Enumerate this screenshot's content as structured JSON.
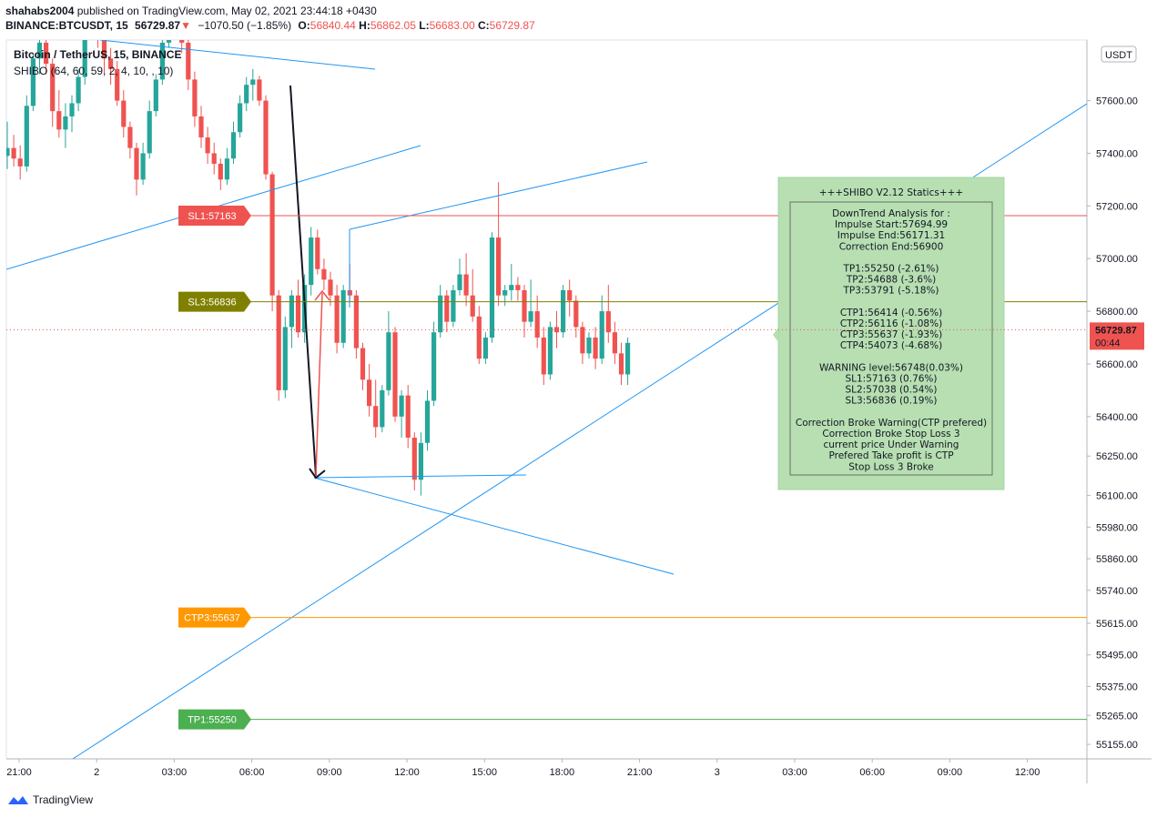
{
  "header": {
    "author": "shahabs2004",
    "published": "published on TradingView.com, May 02, 2021 23:44:18 +0430",
    "symbol": "BINANCE:BTCUSDT, 15",
    "last": "56729.87",
    "change": "−1070.50 (−1.85%)",
    "open": "56840.44",
    "high": "56862.05",
    "low": "56683.00",
    "close": "56729.87"
  },
  "legend": {
    "line1": "Bitcoin / TetherUS, 15, BINANCE",
    "line2": "SHIBO (64, 60, 59, 2, 4, 10, , 10)"
  },
  "footer": {
    "brand": "TradingView"
  },
  "colors": {
    "up": "#26a69a",
    "down": "#ef5350",
    "trend": "#2196f3"
  },
  "chart_data": {
    "type": "candlestick",
    "currency_badge": "USDT",
    "ylim": [
      55100,
      57830
    ],
    "y_ticks": [
      55155,
      55265,
      55375,
      55495,
      55615,
      55740,
      55860,
      55980,
      56100,
      56250,
      56400,
      56600,
      56800,
      57000,
      57200,
      57400,
      57600
    ],
    "x_ticks": [
      {
        "t": 0,
        "label": "21:00"
      },
      {
        "t": 12,
        "label": "2"
      },
      {
        "t": 24,
        "label": "03:00"
      },
      {
        "t": 36,
        "label": "06:00"
      },
      {
        "t": 48,
        "label": "09:00"
      },
      {
        "t": 60,
        "label": "12:00"
      },
      {
        "t": 72,
        "label": "15:00"
      },
      {
        "t": 84,
        "label": "18:00"
      },
      {
        "t": 96,
        "label": "21:00"
      },
      {
        "t": 108,
        "label": "3"
      },
      {
        "t": 120,
        "label": "03:00"
      },
      {
        "t": 132,
        "label": "06:00"
      },
      {
        "t": 144,
        "label": "09:00"
      },
      {
        "t": 156,
        "label": "12:00"
      }
    ],
    "current_price": {
      "value": 56729.87,
      "label": "56729.87",
      "countdown": "00:44"
    },
    "candles": [
      [
        57390,
        57520,
        57340,
        57420
      ],
      [
        57420,
        57470,
        57350,
        57380
      ],
      [
        57380,
        57430,
        57300,
        57350
      ],
      [
        57350,
        57620,
        57330,
        57580
      ],
      [
        57580,
        57780,
        57560,
        57760
      ],
      [
        57760,
        57850,
        57700,
        57820
      ],
      [
        57820,
        57900,
        57700,
        57740
      ],
      [
        57740,
        57760,
        57500,
        57560
      ],
      [
        57560,
        57640,
        57460,
        57490
      ],
      [
        57490,
        57590,
        57420,
        57540
      ],
      [
        57540,
        57620,
        57480,
        57590
      ],
      [
        57590,
        57720,
        57560,
        57690
      ],
      [
        57690,
        58050,
        57660,
        58000
      ],
      [
        58000,
        58100,
        57900,
        57950
      ],
      [
        57950,
        57990,
        57800,
        57850
      ],
      [
        57850,
        57900,
        57700,
        57760
      ],
      [
        57760,
        57800,
        57660,
        57720
      ],
      [
        57720,
        57750,
        57580,
        57600
      ],
      [
        57600,
        57640,
        57460,
        57500
      ],
      [
        57500,
        57520,
        57380,
        57420
      ],
      [
        57420,
        57440,
        57240,
        57300
      ],
      [
        57300,
        57440,
        57280,
        57400
      ],
      [
        57400,
        57600,
        57380,
        57560
      ],
      [
        57560,
        57700,
        57540,
        57680
      ],
      [
        57680,
        57860,
        57660,
        57820
      ],
      [
        57820,
        58000,
        57800,
        57960
      ],
      [
        57960,
        58050,
        57860,
        57900
      ],
      [
        57900,
        57960,
        57780,
        57820
      ],
      [
        57820,
        57860,
        57640,
        57680
      ],
      [
        57680,
        57710,
        57500,
        57540
      ],
      [
        57540,
        57580,
        57420,
        57460
      ],
      [
        57460,
        57500,
        57360,
        57400
      ],
      [
        57400,
        57440,
        57320,
        57360
      ],
      [
        57360,
        57380,
        57260,
        57300
      ],
      [
        57300,
        57420,
        57280,
        57380
      ],
      [
        57380,
        57520,
        57360,
        57480
      ],
      [
        57480,
        57620,
        57460,
        57590
      ],
      [
        57590,
        57690,
        57560,
        57660
      ],
      [
        57660,
        57720,
        57600,
        57680
      ],
      [
        57680,
        57694,
        57580,
        57600
      ],
      [
        57600,
        57620,
        57300,
        57320
      ],
      [
        57320,
        57330,
        56800,
        56860
      ],
      [
        56860,
        56880,
        56460,
        56500
      ],
      [
        56500,
        56780,
        56470,
        56740
      ],
      [
        56740,
        56880,
        56660,
        56860
      ],
      [
        56860,
        56920,
        56700,
        56720
      ],
      [
        56720,
        56940,
        56680,
        56900
      ],
      [
        56900,
        57120,
        56860,
        57080
      ],
      [
        57080,
        57110,
        56940,
        56960
      ],
      [
        56960,
        57000,
        56880,
        56920
      ],
      [
        56920,
        56950,
        56820,
        56860
      ],
      [
        56860,
        56900,
        56640,
        56680
      ],
      [
        56680,
        56900,
        56660,
        56880
      ],
      [
        56880,
        56980,
        56840,
        56860
      ],
      [
        56860,
        56880,
        56620,
        56660
      ],
      [
        56660,
        56680,
        56500,
        56540
      ],
      [
        56540,
        56600,
        56400,
        56440
      ],
      [
        56440,
        56540,
        56320,
        56360
      ],
      [
        56360,
        56520,
        56340,
        56500
      ],
      [
        56500,
        56800,
        56480,
        56720
      ],
      [
        56720,
        56740,
        56380,
        56400
      ],
      [
        56400,
        56500,
        56320,
        56480
      ],
      [
        56480,
        56520,
        56280,
        56320
      ],
      [
        56320,
        56340,
        56120,
        56160
      ],
      [
        56160,
        56340,
        56100,
        56300
      ],
      [
        56300,
        56500,
        56270,
        56460
      ],
      [
        56460,
        56760,
        56440,
        56720
      ],
      [
        56720,
        56900,
        56700,
        56860
      ],
      [
        56860,
        56880,
        56720,
        56760
      ],
      [
        56760,
        56900,
        56740,
        56880
      ],
      [
        56880,
        57000,
        56860,
        56940
      ],
      [
        56940,
        57020,
        56820,
        56860
      ],
      [
        56860,
        56960,
        56760,
        56780
      ],
      [
        56780,
        56820,
        56600,
        56620
      ],
      [
        56620,
        56720,
        56600,
        56700
      ],
      [
        56700,
        57100,
        56680,
        57080
      ],
      [
        57080,
        57290,
        56820,
        56860
      ],
      [
        56860,
        56900,
        56820,
        56880
      ],
      [
        56880,
        56980,
        56840,
        56900
      ],
      [
        56900,
        56930,
        56840,
        56880
      ],
      [
        56880,
        56900,
        56700,
        56760
      ],
      [
        56760,
        56920,
        56740,
        56800
      ],
      [
        56800,
        56860,
        56660,
        56700
      ],
      [
        56700,
        56740,
        56520,
        56560
      ],
      [
        56560,
        56760,
        56540,
        56740
      ],
      [
        56740,
        56800,
        56660,
        56720
      ],
      [
        56720,
        56900,
        56700,
        56880
      ],
      [
        56880,
        56920,
        56780,
        56840
      ],
      [
        56840,
        56860,
        56700,
        56740
      ],
      [
        56740,
        56760,
        56600,
        56640
      ],
      [
        56640,
        56720,
        56620,
        56700
      ],
      [
        56700,
        56740,
        56580,
        56620
      ],
      [
        56620,
        56860,
        56600,
        56800
      ],
      [
        56800,
        56900,
        56680,
        56720
      ],
      [
        56720,
        56760,
        56600,
        56640
      ],
      [
        56640,
        56680,
        56520,
        56560
      ],
      [
        56560,
        56700,
        56520,
        56680
      ]
    ],
    "levels": [
      {
        "name": "SL1",
        "label": "SL1:57163",
        "value": 57163,
        "color": "#ef5350",
        "text": "#ffffff"
      },
      {
        "name": "SL3",
        "label": "SL3:56836",
        "value": 56836,
        "color": "#808000",
        "text": "#ffffff"
      },
      {
        "name": "CTP3",
        "label": "CTP3:55637",
        "value": 55637,
        "color": "#ff9800",
        "text": "#ffffff"
      },
      {
        "name": "TP1",
        "label": "TP1:55250",
        "value": 55250,
        "color": "#4caf50",
        "text": "#ffffff"
      }
    ],
    "stats_panel": {
      "title": "+++SHIBO V2.12 Statics+++",
      "lines": [
        "DownTrend Analysis for :",
        "Impulse Start:57694.99",
        "Impulse End:56171.31",
        "Correction End:56900",
        "",
        "TP1:55250 (-2.61%)",
        "TP2:54688 (-3.6%)",
        "TP3:53791 (-5.18%)",
        "",
        "CTP1:56414 (-0.56%)",
        "CTP2:56116 (-1.08%)",
        "CTP3:55637 (-1.93%)",
        "CTP4:54073 (-4.68%)",
        "",
        "WARNING level:56748(0.03%)",
        "SL1:57163 (0.76%)",
        "SL2:57038 (0.54%)",
        "SL3:56836 (0.19%)",
        "",
        "Correction Broke Warning(CTP prefered)",
        "Correction Broke Stop Loss 3",
        "current price Under Warning",
        "Prefered Take profit is CTP",
        "Stop Loss 3 Broke"
      ]
    }
  }
}
